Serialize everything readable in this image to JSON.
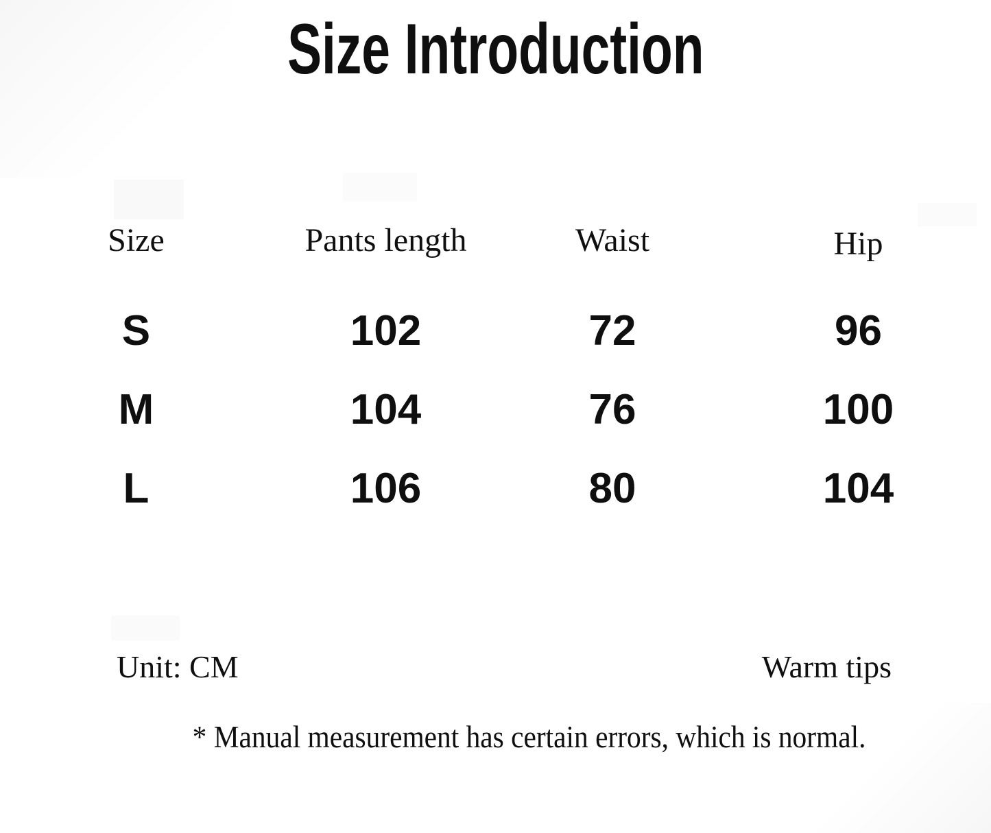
{
  "title": "Size Introduction",
  "table": {
    "headers": [
      "Size",
      "Pants length",
      "Waist",
      "Hip"
    ],
    "rows": [
      {
        "size": "S",
        "pants_length": "102",
        "waist": "72",
        "hip": "96"
      },
      {
        "size": "M",
        "pants_length": "104",
        "waist": "76",
        "hip": "100"
      },
      {
        "size": "L",
        "pants_length": "106",
        "waist": "80",
        "hip": "104"
      }
    ]
  },
  "footer": {
    "unit": "Unit: CM",
    "warm_tips": "Warm tips",
    "note": "* Manual measurement has certain errors, which is normal."
  },
  "colors": {
    "background": "#ffffff",
    "text": "#0f0f0f"
  },
  "chart_data": {
    "type": "table",
    "title": "Size Introduction",
    "columns": [
      "Size",
      "Pants length",
      "Waist",
      "Hip"
    ],
    "rows": [
      [
        "S",
        102,
        72,
        96
      ],
      [
        "M",
        104,
        76,
        100
      ],
      [
        "L",
        106,
        80,
        104
      ]
    ],
    "unit": "CM",
    "note": "* Manual measurement has certain errors, which is normal."
  }
}
